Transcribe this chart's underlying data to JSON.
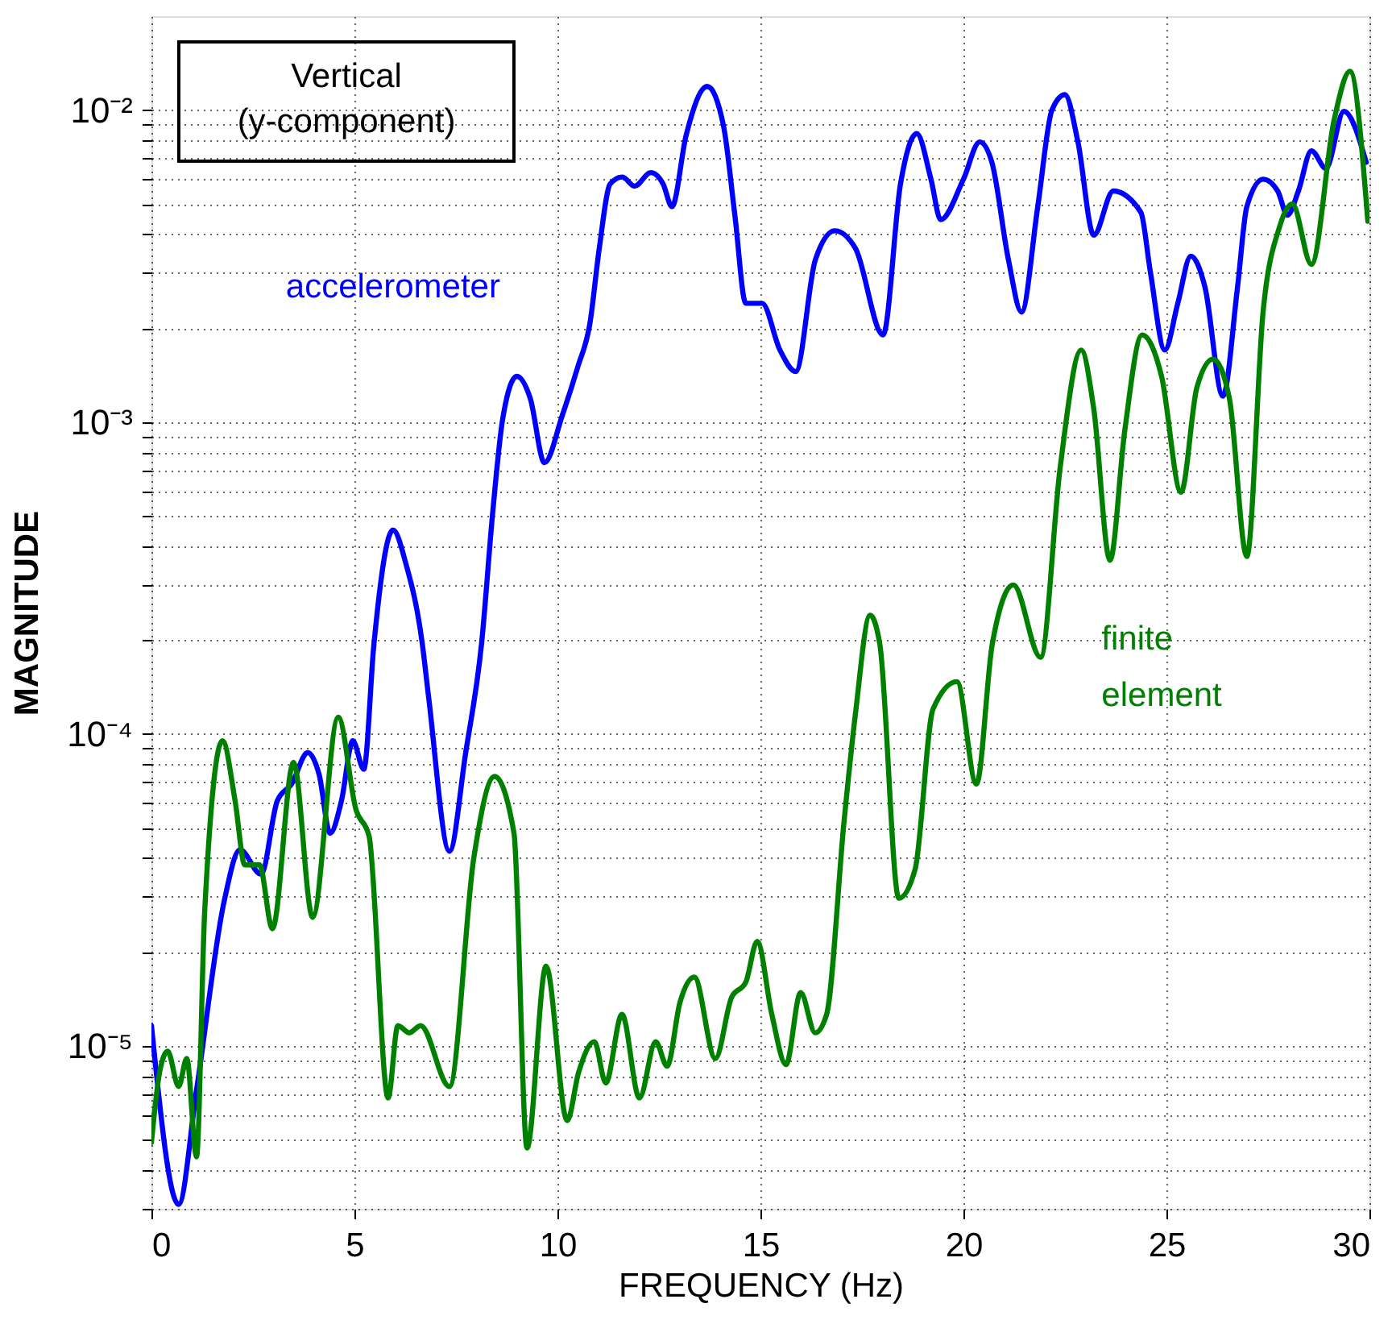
{
  "chart_data": {
    "type": "line",
    "xlabel": "FREQUENCY (Hz)",
    "ylabel": "MAGNITUDE",
    "log": "y",
    "grid": true,
    "legend": false,
    "marker": "none",
    "line_style": "solid",
    "xlim": [
      0,
      30
    ],
    "xticks": [
      0,
      5,
      10,
      15,
      20,
      25,
      30
    ],
    "ylim": [
      3e-06,
      0.02
    ],
    "yticks": [
      {
        "value": 3e-06,
        "label": null
      },
      {
        "value": 4e-06,
        "label": null
      },
      {
        "value": 5e-06,
        "label": null
      },
      {
        "value": 6e-06,
        "label": null
      },
      {
        "value": 7e-06,
        "label": null
      },
      {
        "value": 8e-06,
        "label": null
      },
      {
        "value": 9e-06,
        "label": null
      },
      {
        "value": 1e-05,
        "label": "10⁻⁵"
      },
      {
        "value": 2e-05,
        "label": null
      },
      {
        "value": 3e-05,
        "label": null
      },
      {
        "value": 4e-05,
        "label": null
      },
      {
        "value": 5e-05,
        "label": null
      },
      {
        "value": 6e-05,
        "label": null
      },
      {
        "value": 7e-05,
        "label": null
      },
      {
        "value": 8e-05,
        "label": null
      },
      {
        "value": 9e-05,
        "label": null
      },
      {
        "value": 0.0001,
        "label": "10⁻⁴"
      },
      {
        "value": 0.0002,
        "label": null
      },
      {
        "value": 0.0003,
        "label": null
      },
      {
        "value": 0.0004,
        "label": null
      },
      {
        "value": 0.0005,
        "label": null
      },
      {
        "value": 0.0006,
        "label": null
      },
      {
        "value": 0.0007,
        "label": null
      },
      {
        "value": 0.0008,
        "label": null
      },
      {
        "value": 0.0009,
        "label": null
      },
      {
        "value": 0.001,
        "label": "10⁻³"
      },
      {
        "value": 0.002,
        "label": null
      },
      {
        "value": 0.003,
        "label": null
      },
      {
        "value": 0.004,
        "label": null
      },
      {
        "value": 0.005,
        "label": null
      },
      {
        "value": 0.006,
        "label": null
      },
      {
        "value": 0.007,
        "label": null
      },
      {
        "value": 0.008,
        "label": null
      },
      {
        "value": 0.009,
        "label": null
      },
      {
        "value": 0.01,
        "label": "10⁻²"
      }
    ],
    "annotations": [
      "Vertical\n(y-component)"
    ],
    "series": [
      {
        "name": "accelerometer",
        "color": "#0000ff",
        "x": [
          0,
          0.67,
          1.11,
          1.79,
          2.18,
          2.7,
          3.1,
          3.45,
          3.85,
          4.13,
          4.4,
          4.68,
          4.96,
          5.23,
          5.48,
          5.95,
          6.27,
          6.67,
          6.83,
          7.34,
          7.74,
          8.13,
          8.41,
          8.65,
          9.0,
          9.33,
          9.68,
          10.12,
          10.5,
          10.8,
          11.03,
          11.3,
          11.6,
          11.9,
          12.3,
          12.6,
          12.82,
          13.17,
          13.69,
          14.09,
          14.37,
          14.64,
          15.04,
          15.48,
          15.87,
          16.35,
          16.83,
          17.34,
          18.02,
          18.45,
          18.85,
          19.2,
          19.44,
          20.0,
          20.4,
          20.7,
          21.11,
          21.43,
          21.83,
          22.18,
          22.5,
          22.82,
          23.21,
          23.69,
          24.37,
          24.6,
          24.96,
          25.28,
          25.6,
          25.95,
          26.39,
          26.75,
          26.98,
          27.38,
          27.74,
          27.98,
          28.25,
          28.57,
          28.93,
          29.37,
          29.92
        ],
        "values": [
          1.16e-05,
          3.1e-06,
          7.2e-06,
          2.9e-05,
          4.25e-05,
          3.55e-05,
          6.1e-05,
          6.9e-05,
          8.7e-05,
          7.4e-05,
          4.8e-05,
          6.1e-05,
          9.5e-05,
          7.7e-05,
          0.000194,
          0.00045,
          0.00035,
          0.000195,
          0.00013,
          4.2e-05,
          8.7e-05,
          0.000194,
          0.00052,
          0.00102,
          0.0014,
          0.00119,
          0.00074,
          0.00105,
          0.0015,
          0.00207,
          0.0036,
          0.0058,
          0.0061,
          0.0057,
          0.0063,
          0.0058,
          0.0049,
          0.0083,
          0.0119,
          0.0089,
          0.0046,
          0.0024,
          0.0024,
          0.0017,
          0.00145,
          0.0033,
          0.0041,
          0.0036,
          0.0019,
          0.0058,
          0.0084,
          0.006,
          0.00445,
          0.006,
          0.0079,
          0.0068,
          0.0033,
          0.00225,
          0.0049,
          0.01,
          0.0112,
          0.0079,
          0.00397,
          0.0055,
          0.0047,
          0.00305,
          0.0017,
          0.0024,
          0.0034,
          0.0027,
          0.00121,
          0.0027,
          0.0049,
          0.006,
          0.0055,
          0.0046,
          0.0055,
          0.0074,
          0.0065,
          0.0099,
          0.0068
        ]
      },
      {
        "name": "finite element",
        "color": "#008000",
        "x": [
          0,
          0.2,
          0.4,
          0.67,
          0.87,
          1.11,
          1.31,
          1.75,
          2.06,
          2.3,
          2.66,
          2.98,
          3.5,
          3.97,
          4.6,
          5.04,
          5.36,
          5.83,
          6.07,
          6.35,
          6.63,
          7.34,
          7.94,
          8.45,
          8.93,
          9.25,
          9.72,
          10.24,
          10.52,
          10.91,
          11.19,
          11.59,
          12.02,
          12.42,
          12.7,
          13.02,
          13.37,
          13.89,
          14.29,
          14.64,
          14.92,
          15.28,
          15.63,
          15.99,
          16.35,
          16.63,
          17.06,
          17.34,
          17.7,
          17.94,
          18.41,
          18.81,
          19.25,
          19.84,
          20.32,
          20.71,
          21.23,
          21.9,
          22.38,
          22.9,
          23.21,
          23.61,
          23.97,
          24.4,
          24.88,
          25.36,
          25.75,
          26.15,
          26.55,
          26.98,
          27.38,
          27.78,
          28.1,
          28.57,
          29.13,
          29.52,
          29.96
        ],
        "values": [
          4.9e-06,
          8.2e-06,
          9.6e-06,
          7.4e-06,
          9.1e-06,
          4.4e-06,
          2.67e-05,
          9.5e-05,
          6.1e-05,
          3.8e-05,
          3.8e-05,
          2.37e-05,
          8.1e-05,
          2.58e-05,
          0.000113,
          5.7e-05,
          4.7e-05,
          6.8e-06,
          1.16e-05,
          1.1e-05,
          1.16e-05,
          7.4e-06,
          4e-05,
          7.3e-05,
          4.8e-05,
          4.7e-06,
          1.8e-05,
          5.75e-06,
          8.2e-06,
          1.03e-05,
          7.6e-06,
          1.26e-05,
          6.8e-06,
          1.03e-05,
          8.6e-06,
          1.38e-05,
          1.66e-05,
          9.1e-06,
          1.43e-05,
          1.6e-05,
          2.16e-05,
          1.26e-05,
          8.7e-06,
          1.48e-05,
          1.1e-05,
          1.26e-05,
          5.25e-05,
          0.000116,
          0.00024,
          0.000194,
          2.97e-05,
          3.68e-05,
          0.00012,
          0.000147,
          6.9e-05,
          0.000194,
          0.0003,
          0.000176,
          0.00071,
          0.0017,
          0.0011,
          0.00036,
          0.00093,
          0.0019,
          0.0014,
          0.000595,
          0.00129,
          0.00159,
          0.00119,
          0.00037,
          0.00225,
          0.0042,
          0.005,
          0.0032,
          0.0093,
          0.0133,
          0.0044
        ]
      }
    ]
  }
}
